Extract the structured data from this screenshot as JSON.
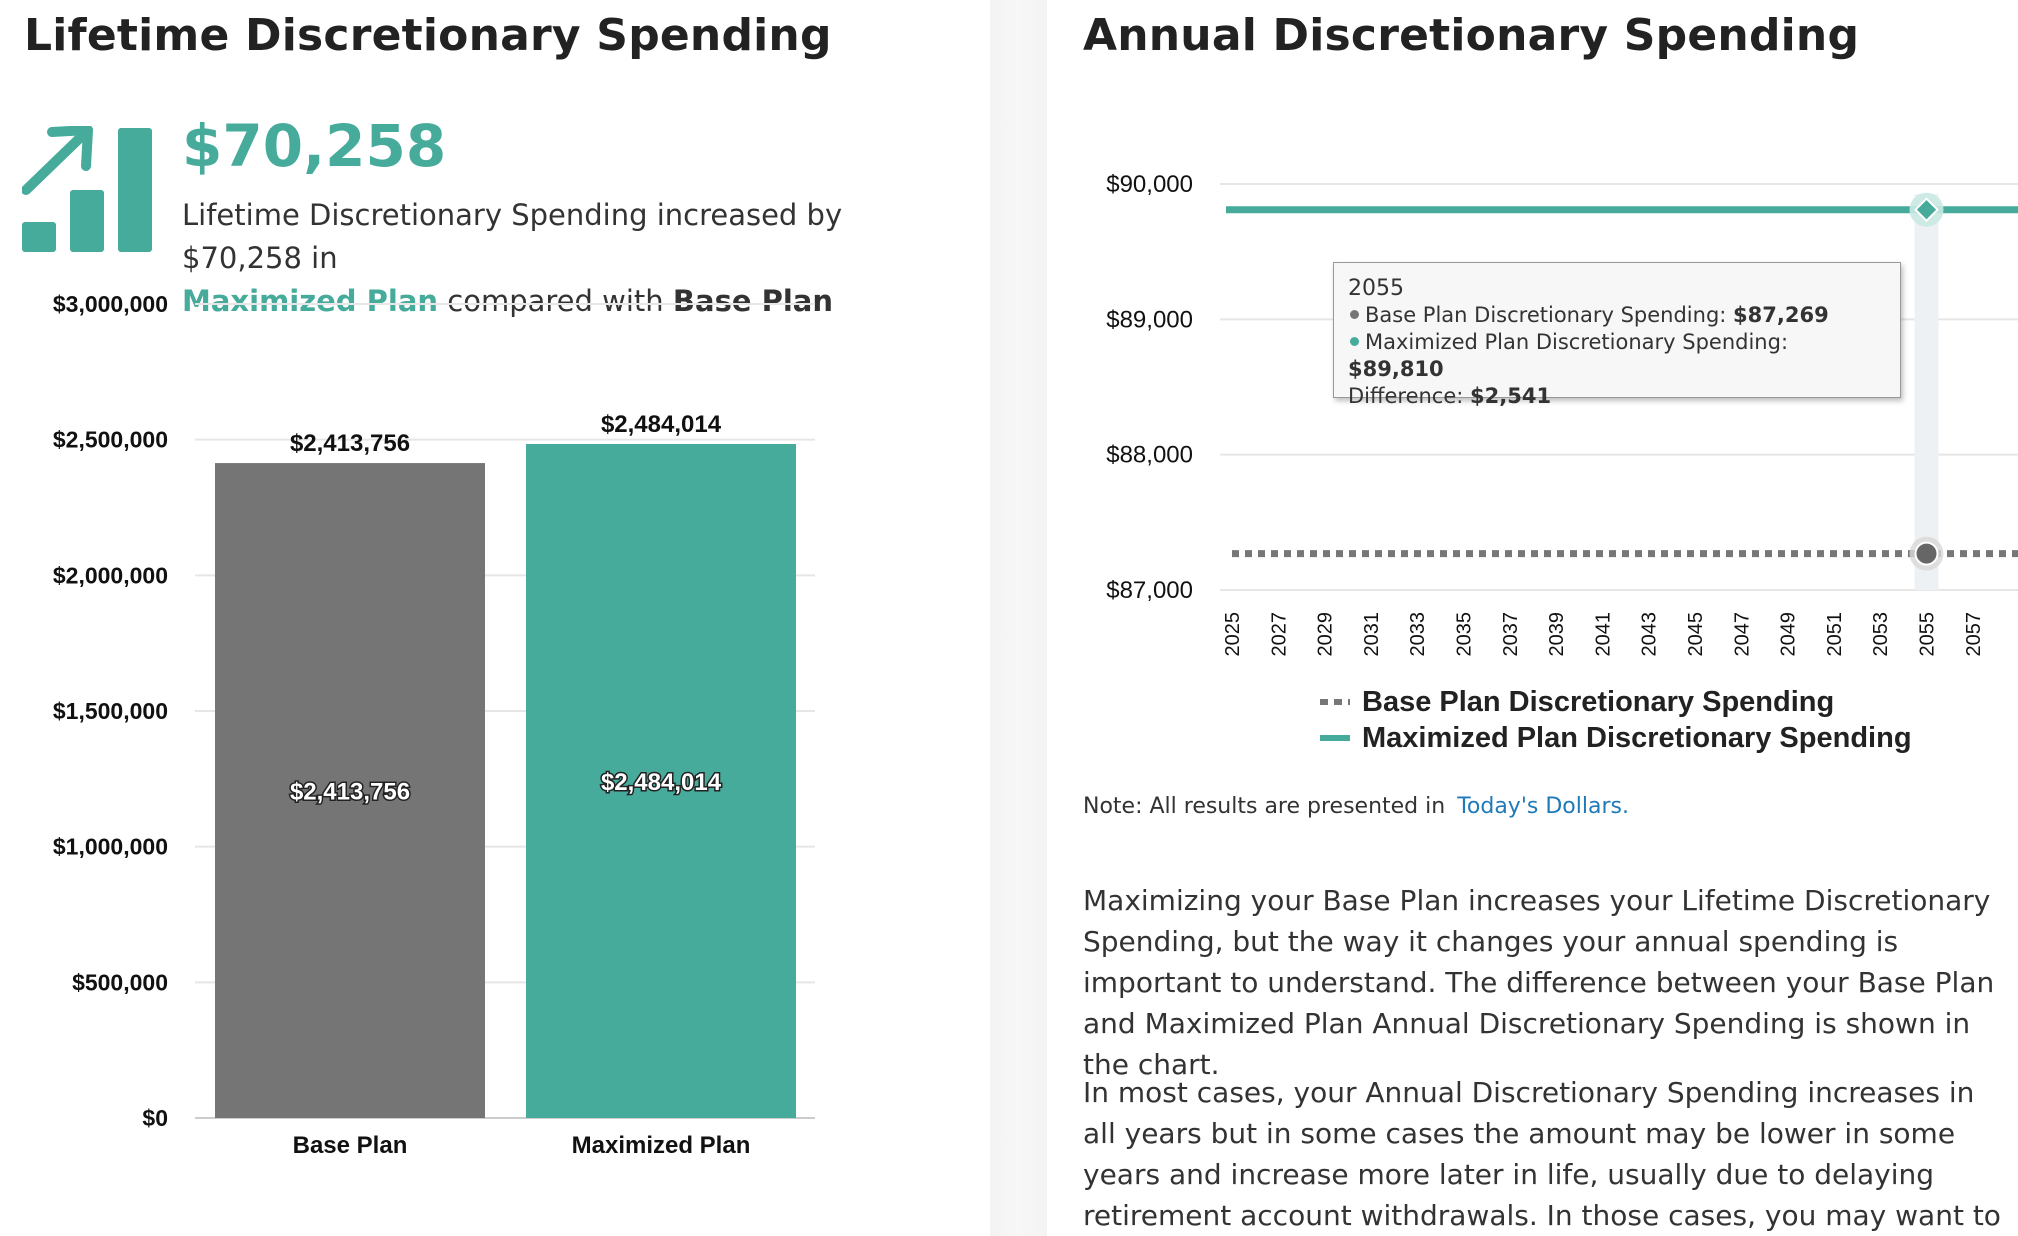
{
  "left": {
    "title": "Lifetime Discretionary Spending",
    "big_number": "$70,258",
    "summary_prefix": "Lifetime Discretionary Spending increased by $70,258 in",
    "summary_accent": "Maximized Plan",
    "summary_middle": "compared with",
    "summary_strong": "Base Plan"
  },
  "right": {
    "title": "Annual Discretionary Spending",
    "tooltip": {
      "year": "2055",
      "base_label": "Base Plan Discretionary Spending:",
      "base_value": "$87,269",
      "max_label": "Maximized Plan Discretionary Spending:",
      "max_value": "$89,810",
      "diff_label": "Difference:",
      "diff_value": "$2,541"
    },
    "legend": {
      "base": "Base Plan Discretionary Spending",
      "max": "Maximized Plan Discretionary Spending"
    },
    "note_text": "Note: All results are presented in",
    "note_link": "Today's Dollars.",
    "para1": "Maximizing your Base Plan increases your Lifetime Discretionary Spending, but the way it changes your annual spending is important to understand. The difference between your Base Plan and Maximized Plan Annual Discretionary Spending is shown in the chart.",
    "para2": "In most cases, your Annual Discretionary Spending increases in all years but in some cases the amount may be lower in some years and increase more later in life, usually due to delaying retirement account withdrawals. In those cases, you may want to stick with your Base Plan or modify it"
  },
  "colors": {
    "accent": "#46ab9b",
    "base": "#757575",
    "link": "#1f7ab8"
  },
  "chart_data": [
    {
      "type": "bar",
      "title": "Lifetime Discretionary Spending",
      "categories": [
        "Base Plan",
        "Maximized Plan"
      ],
      "values": [
        2413756,
        2484014
      ],
      "value_labels": [
        "$2,413,756",
        "$2,484,014"
      ],
      "ylim": [
        0,
        3000000
      ],
      "yticks": [
        0,
        500000,
        1000000,
        1500000,
        2000000,
        2500000,
        3000000
      ],
      "ytick_labels": [
        "$0",
        "$500,000",
        "$1,000,000",
        "$1,500,000",
        "$2,000,000",
        "$2,500,000",
        "$3,000,000"
      ],
      "grid": true
    },
    {
      "type": "line",
      "title": "Annual Discretionary Spending",
      "x_ticks": [
        "2025",
        "2027",
        "2029",
        "2031",
        "2033",
        "2035",
        "2037",
        "2039",
        "2041",
        "2043",
        "2045",
        "2047",
        "2049",
        "2051",
        "2053",
        "2055",
        "2057"
      ],
      "ylim": [
        87000,
        90000
      ],
      "yticks": [
        87000,
        88000,
        89000,
        90000
      ],
      "ytick_labels": [
        "$87,000",
        "$88,000",
        "$89,000",
        "$90,000"
      ],
      "series": [
        {
          "name": "Base Plan Discretionary Spending",
          "style": "dotted",
          "value": 87269
        },
        {
          "name": "Maximized Plan Discretionary Spending",
          "style": "solid",
          "value": 89810
        }
      ],
      "highlight_year": "2055",
      "grid": true
    }
  ]
}
